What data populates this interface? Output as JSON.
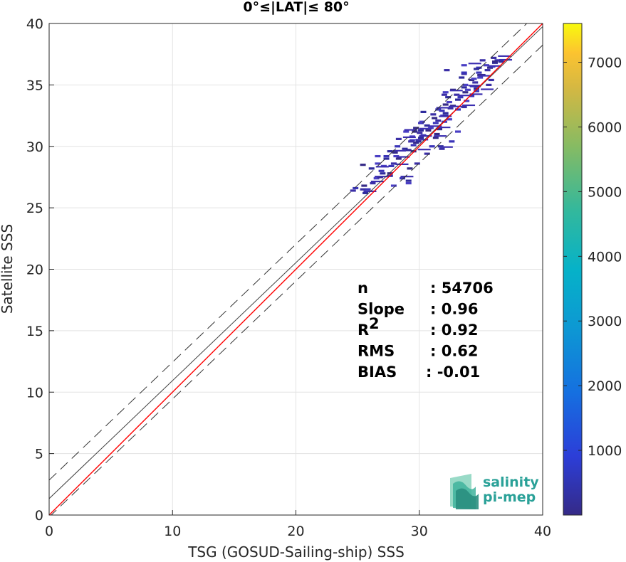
{
  "chart_data": {
    "type": "heatmap",
    "title": "0°≤|LAT|≤ 80°",
    "xlabel": "TSG (GOSUD-Sailing-ship) SSS",
    "ylabel": "Satellite SSS",
    "xlim": [
      0,
      40
    ],
    "ylim": [
      0,
      40
    ],
    "xticks": [
      "0",
      "10",
      "20",
      "30",
      "40"
    ],
    "yticks": [
      "0",
      "5",
      "10",
      "15",
      "20",
      "25",
      "30",
      "35",
      "40"
    ],
    "grid": true,
    "colorbar": {
      "range": [
        0,
        7600
      ],
      "ticks": [
        "1000",
        "2000",
        "3000",
        "4000",
        "5000",
        "6000",
        "7000"
      ],
      "colormap": "parula"
    },
    "reference_lines": {
      "identity": {
        "slope": 1,
        "intercept": 0,
        "color": "#ff0000"
      },
      "regression": {
        "slope": 0.96,
        "intercept": 1.34,
        "color": "#404040"
      },
      "upper_bound": {
        "slope": 0.96,
        "intercept": 2.84,
        "style": "dashed"
      },
      "lower_bound": {
        "slope": 0.96,
        "intercept": -0.16,
        "style": "dashed"
      }
    },
    "stats": [
      {
        "label": "n",
        "value": ": 54706"
      },
      {
        "label": "Slope",
        "value": ": 0.96"
      },
      {
        "label": "R",
        "sup": "2",
        "value": ": 0.92"
      },
      {
        "label": "RMS",
        "value": ": 0.62"
      },
      {
        "label": "BIAS",
        "value": ": -0.01"
      }
    ],
    "density_cells": [
      [
        36.9,
        37.2
      ],
      [
        36.7,
        37.0
      ],
      [
        36.5,
        36.8
      ],
      [
        36.3,
        36.6
      ],
      [
        36.1,
        36.4
      ],
      [
        35.9,
        36.2
      ],
      [
        35.7,
        36.0
      ],
      [
        35.5,
        35.8
      ],
      [
        35.3,
        35.6
      ],
      [
        35.1,
        35.4
      ],
      [
        34.9,
        35.2
      ],
      [
        34.7,
        34.9
      ],
      [
        34.5,
        34.8
      ],
      [
        34.3,
        34.6
      ],
      [
        34.1,
        34.4
      ],
      [
        33.9,
        34.2
      ],
      [
        33.7,
        34.0
      ],
      [
        33.5,
        33.8
      ],
      [
        33.3,
        33.6
      ],
      [
        33.1,
        33.3
      ],
      [
        32.9,
        33.1
      ],
      [
        32.7,
        32.9
      ],
      [
        32.5,
        32.7
      ],
      [
        32.3,
        32.5
      ],
      [
        32.1,
        32.3
      ],
      [
        31.9,
        32.1
      ],
      [
        31.7,
        31.9
      ],
      [
        31.5,
        31.7
      ],
      [
        31.3,
        31.5
      ],
      [
        31.1,
        31.3
      ],
      [
        30.9,
        31.1
      ],
      [
        30.7,
        30.9
      ],
      [
        30.5,
        30.7
      ],
      [
        30.3,
        30.5
      ],
      [
        30.1,
        30.3
      ],
      [
        36.0,
        35.0
      ],
      [
        35.5,
        34.5
      ],
      [
        35.0,
        34.7
      ],
      [
        34.8,
        35.5
      ],
      [
        35.8,
        35.8
      ],
      [
        34.0,
        33.2
      ],
      [
        33.5,
        33.0
      ],
      [
        33.0,
        32.5
      ],
      [
        32.4,
        32.0
      ],
      [
        32.0,
        31.4
      ],
      [
        34.5,
        35.9
      ],
      [
        35.2,
        36.4
      ],
      [
        33.8,
        35.6
      ],
      [
        33.0,
        34.4
      ],
      [
        32.5,
        33.4
      ],
      [
        31.5,
        32.6
      ],
      [
        31.0,
        31.9
      ],
      [
        30.5,
        31.3
      ],
      [
        34.2,
        33.7
      ],
      [
        35.6,
        34.9
      ],
      [
        36.2,
        35.4
      ],
      [
        34.6,
        34.1
      ],
      [
        33.2,
        34.0
      ],
      [
        32.8,
        32.2
      ],
      [
        31.8,
        31.0
      ],
      [
        30.2,
        30.4
      ],
      [
        29.9,
        30.1
      ],
      [
        29.5,
        29.7
      ],
      [
        29.0,
        29.2
      ],
      [
        28.7,
        29.0
      ],
      [
        28.3,
        28.6
      ],
      [
        27.8,
        28.0
      ],
      [
        27.4,
        27.8
      ],
      [
        26.9,
        27.4
      ],
      [
        26.4,
        26.8
      ],
      [
        25.8,
        26.5
      ],
      [
        26.2,
        26.5
      ],
      [
        27.0,
        28.2
      ],
      [
        27.5,
        28.4
      ],
      [
        28.0,
        27.8
      ],
      [
        28.5,
        27.6
      ],
      [
        29.0,
        27.4
      ],
      [
        29.5,
        27.2
      ],
      [
        30.0,
        27.0
      ],
      [
        27.2,
        27.5
      ],
      [
        26.6,
        27.0
      ],
      [
        28.2,
        29.2
      ],
      [
        29.2,
        29.8
      ],
      [
        29.8,
        30.8
      ],
      [
        30.4,
        29.6
      ],
      [
        31.0,
        29.4
      ],
      [
        31.4,
        30.0
      ],
      [
        30.8,
        30.4
      ],
      [
        29.3,
        31.2
      ],
      [
        30.1,
        31.5
      ],
      [
        25.5,
        26.4
      ],
      [
        25.2,
        26.6
      ],
      [
        26.0,
        26.2
      ],
      [
        28.8,
        26.8
      ],
      [
        29.6,
        28.2
      ],
      [
        30.2,
        28.6
      ],
      [
        28.6,
        28.4
      ],
      [
        27.7,
        29.0
      ],
      [
        27.0,
        28.6
      ],
      [
        26.3,
        28.5
      ],
      [
        32.2,
        29.8
      ],
      [
        33.0,
        30.4
      ],
      [
        32.6,
        30.0
      ],
      [
        33.5,
        31.2
      ],
      [
        31.7,
        30.7
      ],
      [
        33.1,
        36.2
      ],
      [
        34.0,
        36.0
      ],
      [
        35.0,
        36.3
      ],
      [
        34.5,
        36.6
      ],
      [
        36.5,
        36.9
      ],
      [
        35.5,
        37.0
      ],
      [
        36.8,
        36.5
      ],
      [
        37.0,
        36.9
      ],
      [
        34.1,
        35.0
      ],
      [
        33.6,
        34.6
      ],
      [
        32.4,
        34.2
      ],
      [
        31.9,
        33.0
      ],
      [
        31.2,
        32.8
      ],
      [
        30.6,
        32.0
      ],
      [
        30.0,
        31.2
      ],
      [
        29.2,
        30.6
      ],
      [
        28.6,
        30.0
      ],
      [
        28.0,
        29.6
      ],
      [
        27.5,
        29.2
      ],
      [
        28.4,
        29.5
      ]
    ]
  }
}
